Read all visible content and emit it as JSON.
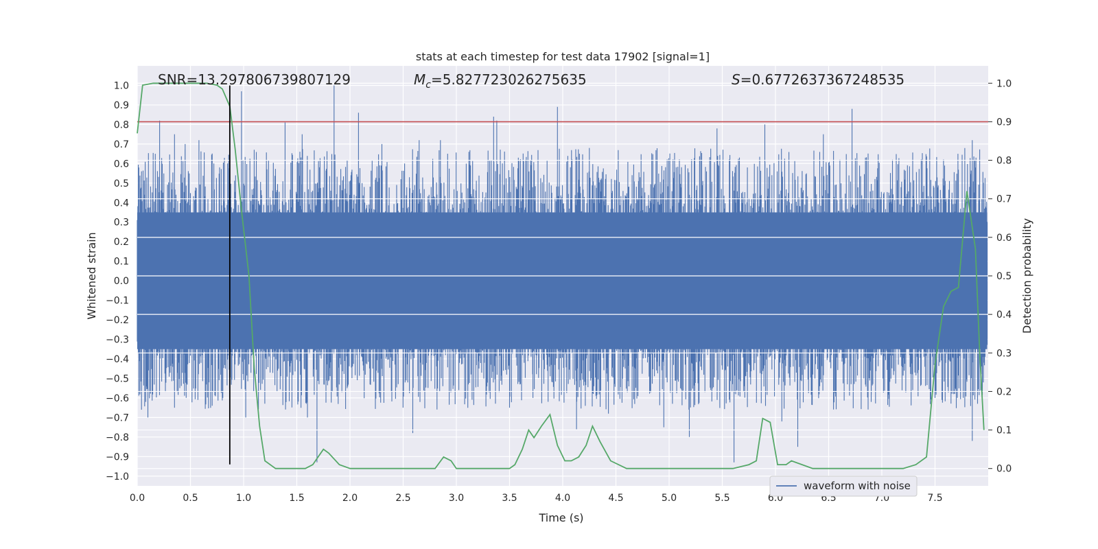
{
  "chart_data": {
    "type": "line",
    "title": "stats at each timestep for test data 17902 [signal=1]",
    "xlabel": "Time (s)",
    "ylabel": "Whitened strain",
    "y2label": "Detection probability",
    "xlim": [
      0.0,
      8.0
    ],
    "ylim": [
      -1.05,
      1.1
    ],
    "y2lim": [
      -0.045,
      1.045
    ],
    "xticks": [
      "0.0",
      "0.5",
      "1.0",
      "1.5",
      "2.0",
      "2.5",
      "3.0",
      "3.5",
      "4.0",
      "4.5",
      "5.0",
      "5.5",
      "6.0",
      "6.5",
      "7.0",
      "7.5"
    ],
    "yticks": [
      "1.0",
      "0.9",
      "0.8",
      "0.7",
      "0.6",
      "0.5",
      "0.4",
      "0.3",
      "0.2",
      "0.1",
      "0.0",
      "-0.1",
      "-0.2",
      "-0.3",
      "-0.4",
      "-0.5",
      "-0.6",
      "-0.7",
      "-0.8",
      "-0.9",
      "-1.0"
    ],
    "y2ticks": [
      "1.0",
      "0.9",
      "0.8",
      "0.7",
      "0.6",
      "0.5",
      "0.4",
      "0.3",
      "0.2",
      "0.1",
      "0.0"
    ],
    "grid": true,
    "legend_position": "bottom-right",
    "annotations": {
      "snr": "SNR=13.297806739807129",
      "mc_prefix": "M",
      "mc_sub": "c",
      "mc_value": "=5.827723026275635",
      "s_prefix": "S",
      "s_value": "=0.6772637367248535"
    },
    "threshold_y2": 0.9,
    "marker_x": 0.87,
    "colors": {
      "waveform": "#4c72b0",
      "probability": "#55a868",
      "threshold": "#c44e52",
      "marker": "#000000",
      "plot_bg": "#eaeaf2",
      "grid": "#ffffff"
    },
    "waveform": {
      "name": "waveform with noise",
      "x_range": [
        0.0,
        7.99
      ],
      "dense_band": [
        -0.35,
        0.35
      ],
      "peaks_high": [
        [
          0.17,
          0.65
        ],
        [
          0.21,
          0.82
        ],
        [
          0.35,
          0.75
        ],
        [
          0.45,
          0.7
        ],
        [
          0.58,
          0.72
        ],
        [
          0.72,
          0.6
        ],
        [
          0.98,
          0.97
        ],
        [
          1.39,
          0.81
        ],
        [
          1.55,
          0.75
        ],
        [
          1.85,
          1.0
        ],
        [
          2.08,
          0.86
        ],
        [
          2.3,
          0.7
        ],
        [
          2.65,
          0.72
        ],
        [
          2.85,
          0.72
        ],
        [
          3.35,
          0.84
        ],
        [
          3.38,
          0.82
        ],
        [
          3.95,
          0.89
        ],
        [
          4.25,
          0.68
        ],
        [
          5.45,
          0.78
        ],
        [
          5.9,
          0.8
        ],
        [
          6.45,
          0.75
        ],
        [
          6.72,
          0.88
        ],
        [
          7.1,
          0.62
        ],
        [
          7.85,
          0.72
        ]
      ],
      "peaks_low": [
        [
          0.08,
          -0.62
        ],
        [
          0.1,
          -0.7
        ],
        [
          0.35,
          -0.65
        ],
        [
          0.57,
          -0.61
        ],
        [
          0.8,
          -0.59
        ],
        [
          1.02,
          -0.7
        ],
        [
          1.6,
          -0.7
        ],
        [
          1.69,
          -0.93
        ],
        [
          2.59,
          -0.78
        ],
        [
          3.5,
          -0.65
        ],
        [
          3.72,
          -0.6
        ],
        [
          4.13,
          -0.76
        ],
        [
          4.43,
          -0.68
        ],
        [
          4.95,
          -0.75
        ],
        [
          5.19,
          -0.8
        ],
        [
          5.61,
          -0.93
        ],
        [
          6.06,
          -0.72
        ],
        [
          6.21,
          -0.85
        ],
        [
          6.9,
          -0.62
        ],
        [
          7.5,
          -0.6
        ],
        [
          7.85,
          -0.82
        ]
      ]
    },
    "probability": {
      "x": [
        0.0,
        0.05,
        0.15,
        0.3,
        0.5,
        0.65,
        0.75,
        0.8,
        0.87,
        0.92,
        0.98,
        1.05,
        1.1,
        1.15,
        1.2,
        1.3,
        1.4,
        1.5,
        1.58,
        1.65,
        1.7,
        1.75,
        1.8,
        1.9,
        2.0,
        2.1,
        2.2,
        2.3,
        2.4,
        2.5,
        2.6,
        2.7,
        2.8,
        2.88,
        2.95,
        3.0,
        3.1,
        3.2,
        3.3,
        3.4,
        3.5,
        3.55,
        3.62,
        3.68,
        3.73,
        3.8,
        3.88,
        3.95,
        4.02,
        4.08,
        4.15,
        4.22,
        4.28,
        4.35,
        4.45,
        4.6,
        4.8,
        5.0,
        5.2,
        5.4,
        5.6,
        5.75,
        5.82,
        5.88,
        5.95,
        6.02,
        6.1,
        6.15,
        6.25,
        6.35,
        6.5,
        6.7,
        7.0,
        7.2,
        7.32,
        7.42,
        7.5,
        7.58,
        7.65,
        7.72,
        7.8,
        7.88,
        7.92,
        7.96
      ],
      "y": [
        0.87,
        0.995,
        1.0,
        1.0,
        1.0,
        1.0,
        0.995,
        0.985,
        0.94,
        0.83,
        0.67,
        0.5,
        0.26,
        0.11,
        0.02,
        0.0,
        0.0,
        0.0,
        0.0,
        0.01,
        0.03,
        0.05,
        0.04,
        0.01,
        0.0,
        0.0,
        0.0,
        0.0,
        0.0,
        0.0,
        0.0,
        0.0,
        0.0,
        0.03,
        0.02,
        0.0,
        0.0,
        0.0,
        0.0,
        0.0,
        0.0,
        0.01,
        0.05,
        0.1,
        0.08,
        0.11,
        0.14,
        0.06,
        0.02,
        0.02,
        0.03,
        0.06,
        0.11,
        0.07,
        0.02,
        0.0,
        0.0,
        0.0,
        0.0,
        0.0,
        0.0,
        0.01,
        0.02,
        0.13,
        0.12,
        0.01,
        0.01,
        0.02,
        0.01,
        0.0,
        0.0,
        0.0,
        0.0,
        0.0,
        0.01,
        0.03,
        0.27,
        0.42,
        0.46,
        0.47,
        0.72,
        0.57,
        0.3,
        0.1
      ]
    }
  }
}
